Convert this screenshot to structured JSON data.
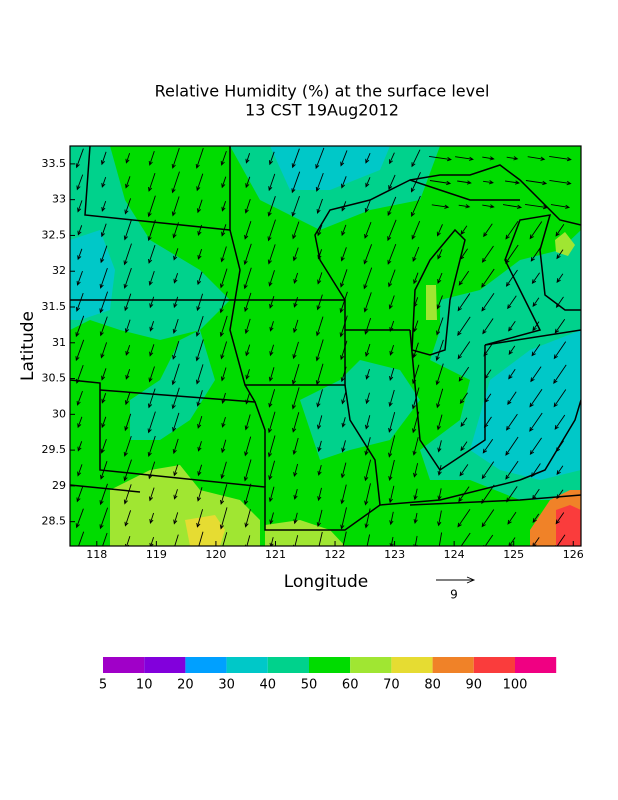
{
  "chart_data": {
    "type": "contour",
    "title": "Relative Humidity (%) at the surface level",
    "subtitle": "13 CST 19Aug2012",
    "xlabel": "Longitude",
    "ylabel": "Latitude",
    "xlim": [
      117.55,
      126.13
    ],
    "ylim": [
      28.16,
      33.75
    ],
    "xticks": [
      118,
      119,
      120,
      121,
      122,
      123,
      124,
      125,
      126
    ],
    "yticks": [
      28.5,
      29,
      29.5,
      30,
      30.5,
      31,
      31.5,
      32,
      32.5,
      33,
      33.5
    ],
    "colorbar": {
      "levels": [
        5,
        10,
        20,
        30,
        40,
        50,
        60,
        70,
        80,
        90,
        100
      ],
      "colors": [
        "#a000c8",
        "#8200dc",
        "#00a0ff",
        "#00c8c8",
        "#00d28c",
        "#00dc00",
        "#a0e632",
        "#e6dc32",
        "#f08228",
        "#fa3c3c",
        "#f00082"
      ]
    },
    "vector_scale_label": 9
  }
}
